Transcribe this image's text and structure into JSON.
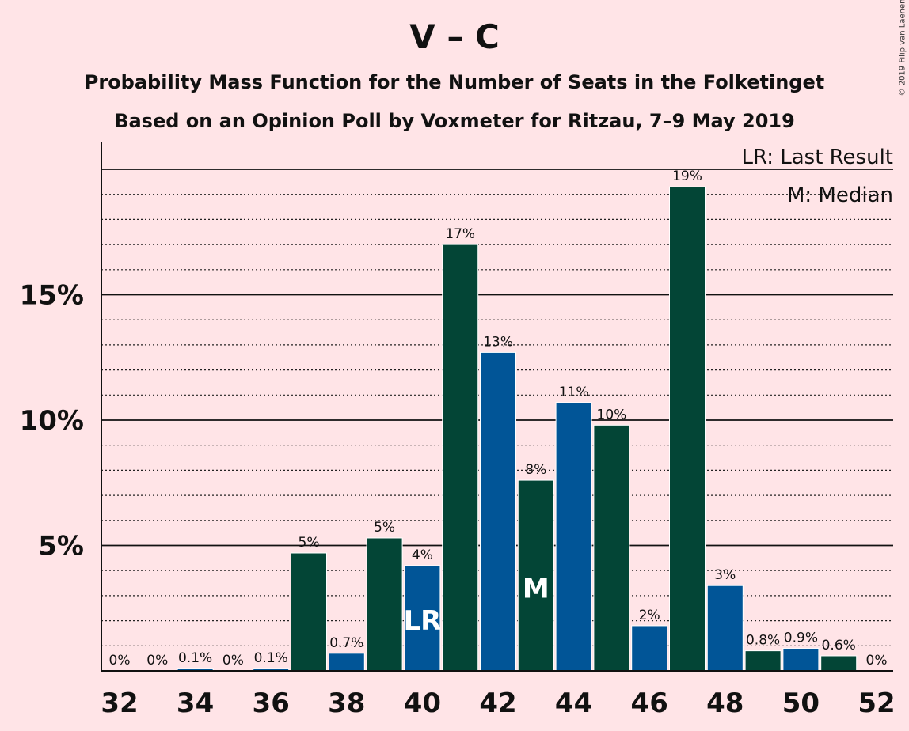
{
  "chart_data": {
    "type": "bar",
    "title": "V – C",
    "subtitle": "Probability Mass Function for the Number of Seats in the Folketinget",
    "subtitle2": "Based on an Opinion Poll by Voxmeter for Ritzau, 7–9 May 2019",
    "copyright": "© 2019 Filip van Laenen",
    "legend": {
      "lr": "LR: Last Result",
      "m": "M: Median",
      "placement": "top-right"
    },
    "x": [
      32,
      33,
      34,
      35,
      36,
      37,
      38,
      39,
      40,
      41,
      42,
      43,
      44,
      45,
      46,
      47,
      48,
      49,
      50,
      51,
      52
    ],
    "values": [
      0,
      0,
      0.1,
      0,
      0.1,
      4.7,
      0.7,
      5.3,
      4.2,
      17.0,
      12.7,
      7.6,
      10.7,
      9.8,
      1.8,
      19.3,
      3.4,
      0.8,
      0.9,
      0.6,
      0
    ],
    "data_labels": [
      "0%",
      "0%",
      "0.1%",
      "0%",
      "0.1%",
      "5%",
      "0.7%",
      "5%",
      "4%",
      "17%",
      "13%",
      "8%",
      "11%",
      "10%",
      "2%",
      "19%",
      "3%",
      "0.8%",
      "0.9%",
      "0.6%",
      "0%"
    ],
    "x_ticks": [
      "32",
      "34",
      "36",
      "38",
      "40",
      "42",
      "44",
      "46",
      "48",
      "50",
      "52"
    ],
    "y_ticks": [
      "5%",
      "10%",
      "15%"
    ],
    "y_tick_values": [
      5,
      10,
      15
    ],
    "ylim": [
      0,
      21
    ],
    "grid": true,
    "last_result": {
      "seat": 40,
      "label": "LR"
    },
    "median": {
      "seat": 43,
      "label": "M"
    },
    "colors": {
      "dark": "#034536",
      "blue": "#015597",
      "background": "#ffe4e7"
    }
  }
}
